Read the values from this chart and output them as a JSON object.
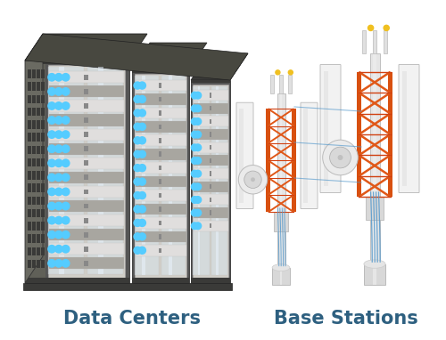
{
  "background_color": "#ffffff",
  "label_left": "Data Centers",
  "label_right": "Base Stations",
  "label_color": "#2e6080",
  "label_fontsize": 15,
  "label_fontweight": "bold",
  "fig_width": 5.0,
  "fig_height": 3.82,
  "dpi": 100,
  "rack_color_dark": "#555555",
  "rack_color_mid": "#888880",
  "rack_color_light": "#c8c6c0",
  "rack_color_panel": "#d0cec8",
  "rack_color_row_light": "#e0dedd",
  "rack_color_row_dark": "#a8a6a0",
  "rack_color_led": "#55ccff",
  "rack_color_top": "#3a3a38",
  "rack_color_vent": "#444440",
  "tower_pole_color": "#e0e0e0",
  "tower_orange": "#e05520",
  "tower_antenna_color": "#f0f0f0",
  "tower_cable_color": "#5599cc",
  "tower_dish_color": "#e8e8e8"
}
